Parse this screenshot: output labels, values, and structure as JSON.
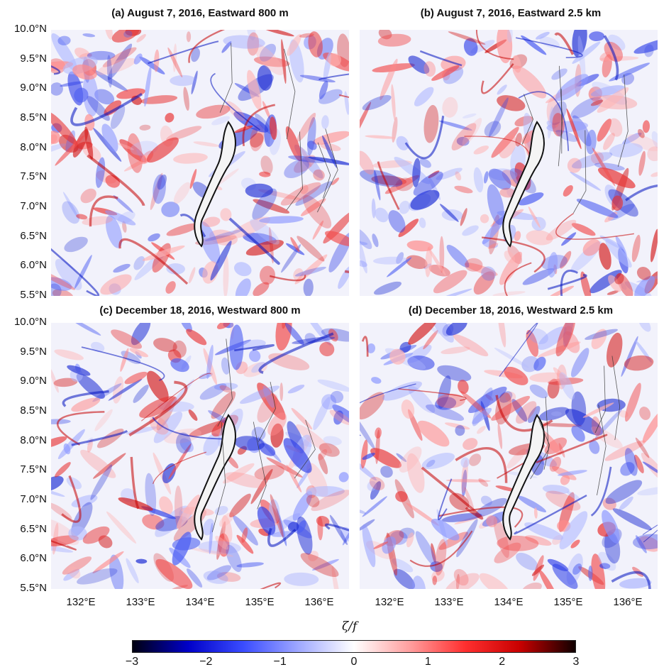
{
  "chart_data": [
    {
      "type": "heatmap",
      "title": "(a) August 7, 2016, Eastward 800 m",
      "ylim": [
        5.5,
        10.0
      ],
      "xlim": [
        131.5,
        136.5
      ],
      "yticks": [
        "10.0°N",
        "9.5°N",
        "9.0°N",
        "8.5°N",
        "8.0°N",
        "7.5°N",
        "7.0°N",
        "6.5°N",
        "6.0°N",
        "5.5°N"
      ],
      "xticks": []
    },
    {
      "type": "heatmap",
      "title": "(b) August 7, 2016, Eastward 2.5 km",
      "ylim": [
        5.5,
        10.0
      ],
      "xlim": [
        131.5,
        136.5
      ],
      "yticks": [],
      "xticks": []
    },
    {
      "type": "heatmap",
      "title": "(c) December 18, 2016, Westward 800 m",
      "ylim": [
        5.5,
        10.0
      ],
      "xlim": [
        131.5,
        136.5
      ],
      "yticks": [
        "10.0°N",
        "9.5°N",
        "9.0°N",
        "8.5°N",
        "8.0°N",
        "7.5°N",
        "7.0°N",
        "6.5°N",
        "6.0°N",
        "5.5°N"
      ],
      "xticks": [
        "132°E",
        "133°E",
        "134°E",
        "135°E",
        "136°E"
      ]
    },
    {
      "type": "heatmap",
      "title": "(d) December 18, 2016, Westward 2.5 km",
      "ylim": [
        5.5,
        10.0
      ],
      "xlim": [
        131.5,
        136.5
      ],
      "yticks": [],
      "xticks": [
        "132°E",
        "133°E",
        "134°E",
        "135°E",
        "136°E"
      ]
    }
  ],
  "colorbar": {
    "label": "ζ/f",
    "min": -3,
    "max": 3,
    "ticks": [
      "−3",
      "−2",
      "−1",
      "0",
      "1",
      "2",
      "3"
    ],
    "colors": [
      "#000010",
      "#0000c8",
      "#3a4cff",
      "#9fa8ff",
      "#ffffff",
      "#ff9f9f",
      "#ff3030",
      "#c80000",
      "#100000"
    ]
  }
}
